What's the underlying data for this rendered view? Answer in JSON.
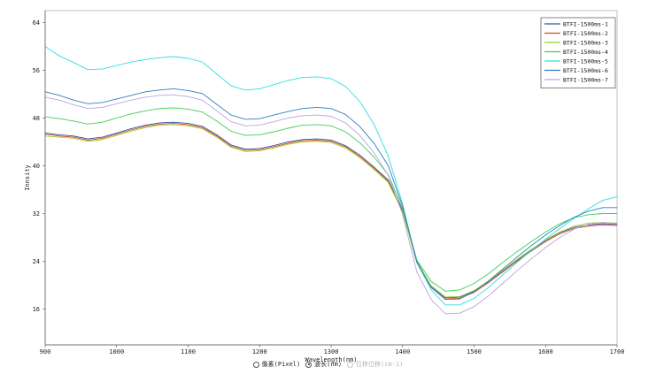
{
  "chart_data": {
    "type": "line",
    "title": "",
    "xlabel": "Wavelength(nm)",
    "ylabel": "Innsity",
    "xlim": [
      900,
      1700
    ],
    "ylim": [
      10,
      66
    ],
    "xticks": [
      900,
      1000,
      1100,
      1200,
      1300,
      1400,
      1500,
      1600,
      1700
    ],
    "yticks": [
      16,
      24,
      32,
      40,
      48,
      56,
      64
    ],
    "grid": false,
    "legend": "top-right",
    "x": [
      900,
      920,
      940,
      960,
      980,
      1000,
      1020,
      1040,
      1060,
      1080,
      1100,
      1120,
      1140,
      1160,
      1180,
      1200,
      1220,
      1240,
      1260,
      1280,
      1300,
      1320,
      1340,
      1360,
      1380,
      1400,
      1420,
      1440,
      1460,
      1480,
      1500,
      1520,
      1540,
      1560,
      1580,
      1600,
      1620,
      1640,
      1660,
      1680,
      1700
    ],
    "series": [
      {
        "name": "BTFI-1500ms-1",
        "color": "#3b4fa8",
        "values": [
          45.5,
          45.2,
          45.0,
          44.5,
          44.8,
          45.5,
          46.2,
          46.8,
          47.2,
          47.3,
          47.1,
          46.6,
          45.2,
          43.5,
          42.8,
          42.9,
          43.4,
          44.0,
          44.4,
          44.5,
          44.3,
          43.4,
          41.8,
          39.8,
          37.6,
          32.5,
          24.0,
          19.8,
          17.9,
          18.0,
          19.0,
          20.6,
          22.4,
          24.2,
          25.9,
          27.5,
          28.8,
          29.7,
          30.1,
          30.3,
          30.2
        ]
      },
      {
        "name": "BTFI-1500ms-2",
        "color": "#d0471c",
        "values": [
          45.3,
          45.0,
          44.8,
          44.3,
          44.6,
          45.3,
          46.0,
          46.6,
          47.0,
          47.1,
          46.9,
          46.4,
          45.0,
          43.3,
          42.6,
          42.7,
          43.2,
          43.8,
          44.2,
          44.3,
          44.1,
          43.2,
          41.6,
          39.6,
          37.4,
          32.3,
          23.8,
          19.6,
          17.7,
          17.8,
          18.8,
          20.4,
          22.2,
          24.0,
          25.7,
          27.3,
          28.6,
          29.5,
          29.9,
          30.1,
          30.0
        ]
      },
      {
        "name": "BTFI-1500ms-3",
        "color": "#9ad021",
        "values": [
          45.0,
          44.8,
          44.6,
          44.1,
          44.4,
          45.1,
          45.8,
          46.4,
          46.8,
          46.9,
          46.7,
          46.2,
          44.8,
          43.1,
          42.4,
          42.5,
          43.0,
          43.6,
          44.0,
          44.1,
          43.9,
          43.0,
          41.4,
          39.4,
          37.2,
          32.2,
          23.9,
          19.9,
          18.0,
          18.1,
          19.1,
          20.7,
          22.5,
          24.3,
          26.0,
          27.6,
          28.9,
          29.9,
          30.4,
          30.5,
          30.4
        ]
      },
      {
        "name": "BTFI-1500ms-4",
        "color": "#3ecf55",
        "values": [
          48.2,
          47.9,
          47.5,
          47.0,
          47.3,
          48.0,
          48.7,
          49.2,
          49.6,
          49.7,
          49.5,
          49.0,
          47.5,
          45.8,
          45.1,
          45.2,
          45.7,
          46.3,
          46.8,
          46.9,
          46.7,
          45.7,
          43.9,
          41.5,
          38.5,
          32.8,
          24.2,
          20.6,
          19.0,
          19.2,
          20.3,
          21.9,
          23.8,
          25.6,
          27.3,
          28.9,
          30.3,
          31.3,
          31.8,
          32.0,
          32.0
        ]
      },
      {
        "name": "BTFI-1500ms-5",
        "color": "#2fdde0",
        "values": [
          60.0,
          58.4,
          57.3,
          56.1,
          56.2,
          56.8,
          57.4,
          57.8,
          58.1,
          58.3,
          58.0,
          57.4,
          55.4,
          53.4,
          52.7,
          52.9,
          53.6,
          54.3,
          54.8,
          54.9,
          54.6,
          53.3,
          50.8,
          47.0,
          41.6,
          33.6,
          23.8,
          19.2,
          16.7,
          16.7,
          17.8,
          19.6,
          21.7,
          23.8,
          25.8,
          27.7,
          29.5,
          31.2,
          32.8,
          34.2,
          34.8
        ]
      },
      {
        "name": "BTFI-1500ms-6",
        "color": "#2e7fc4",
        "values": [
          52.4,
          51.8,
          51.0,
          50.4,
          50.6,
          51.2,
          51.8,
          52.4,
          52.7,
          52.9,
          52.6,
          52.1,
          50.3,
          48.5,
          47.8,
          47.9,
          48.5,
          49.1,
          49.6,
          49.8,
          49.6,
          48.6,
          46.6,
          43.8,
          40.0,
          33.2,
          23.8,
          19.6,
          17.6,
          17.7,
          18.9,
          20.7,
          22.7,
          24.7,
          26.6,
          28.4,
          30.0,
          31.4,
          32.4,
          33.0,
          33.0
        ]
      },
      {
        "name": "BTFI-1500ms-7",
        "color": "#b7a7e0",
        "values": [
          51.5,
          51.0,
          50.2,
          49.6,
          49.8,
          50.4,
          51.0,
          51.5,
          51.8,
          51.9,
          51.6,
          51.0,
          49.2,
          47.4,
          46.7,
          46.8,
          47.4,
          48.0,
          48.4,
          48.5,
          48.3,
          47.2,
          45.1,
          42.2,
          38.4,
          31.8,
          22.2,
          17.6,
          15.2,
          15.3,
          16.4,
          18.2,
          20.3,
          22.4,
          24.4,
          26.3,
          28.0,
          29.4,
          30.2,
          30.5,
          30.3
        ]
      }
    ]
  },
  "options": {
    "items": [
      {
        "label": "像素(Pixel)",
        "checked": false,
        "disabled": false
      },
      {
        "label": "波长(nm)",
        "checked": true,
        "disabled": false
      },
      {
        "label": "位移位移(cm-1)",
        "checked": false,
        "disabled": true
      }
    ]
  }
}
